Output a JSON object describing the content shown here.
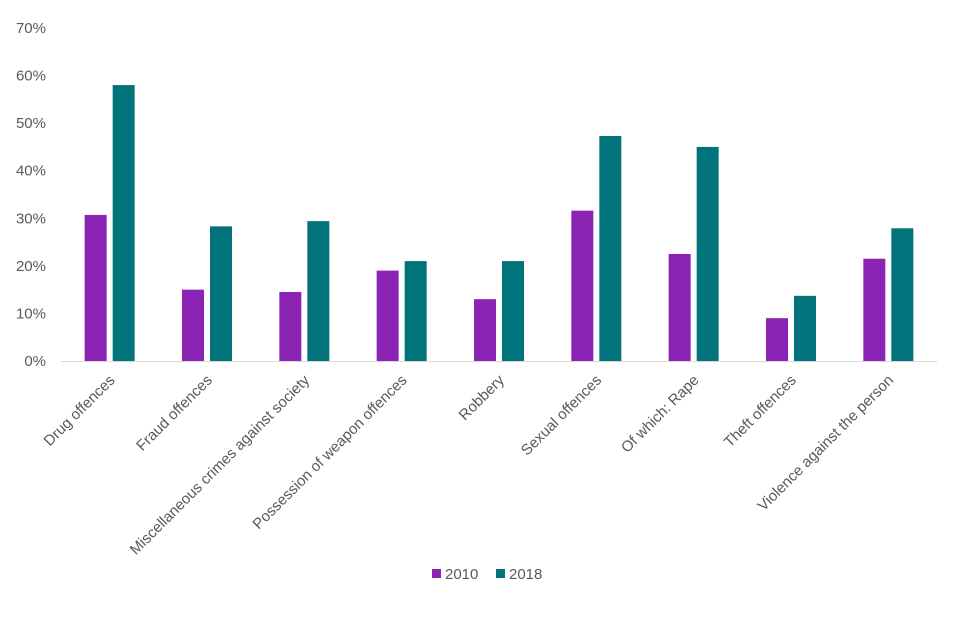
{
  "chart_data": {
    "type": "bar",
    "categories": [
      "Drug offences",
      "Fraud offences",
      "Miscellaneous crimes against society",
      "Possession of weapon offences",
      "Robbery",
      "Sexual offences",
      "Of which: Rape",
      "Theft offences",
      "Violence against the person"
    ],
    "series": [
      {
        "name": "2010",
        "values": [
          30.7,
          15.0,
          14.5,
          19.0,
          13.0,
          31.6,
          22.5,
          9.0,
          21.5
        ],
        "color": "#8b23b5"
      },
      {
        "name": "2018",
        "values": [
          58.0,
          28.3,
          29.4,
          21.0,
          21.0,
          47.3,
          45.0,
          13.7,
          27.9
        ],
        "color": "#00747a"
      }
    ],
    "yticks": [
      "0%",
      "10%",
      "20%",
      "30%",
      "40%",
      "50%",
      "60%",
      "70%"
    ],
    "ylim": [
      0,
      70
    ],
    "legend_position": "bottom",
    "grid": false,
    "axis_color": "#d9d9d9"
  }
}
